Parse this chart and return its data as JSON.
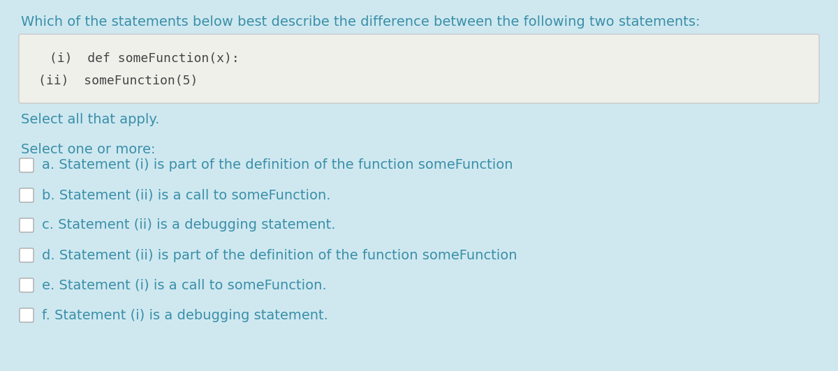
{
  "bg_color": "#cfe8f0",
  "question_text": "Which of the statements below best describe the difference between the following two statements:",
  "code_bg_color": "#f0f0eb",
  "code_border_color": "#c8c8c8",
  "code_line1": " (i)  def someFunction(x):",
  "code_line2": "(ii)  someFunction(5)",
  "select_all_text": "Select all that apply.",
  "select_one_text": "Select one or more:",
  "options": [
    "a. Statement (i) is part of the definition of the function someFunction",
    "b. Statement (ii) is a call to someFunction.",
    "c. Statement (ii) is a debugging statement.",
    "d. Statement (ii) is part of the definition of the function someFunction",
    "e. Statement (i) is a call to someFunction.",
    "f. Statement (i) is a debugging statement."
  ],
  "text_color": "#3a8fa8",
  "code_text_color": "#444444",
  "option_text_color": "#3a8fa8",
  "question_fontsize": 14,
  "code_fontsize": 13,
  "option_fontsize": 14,
  "figwidth": 12.0,
  "figheight": 5.32
}
